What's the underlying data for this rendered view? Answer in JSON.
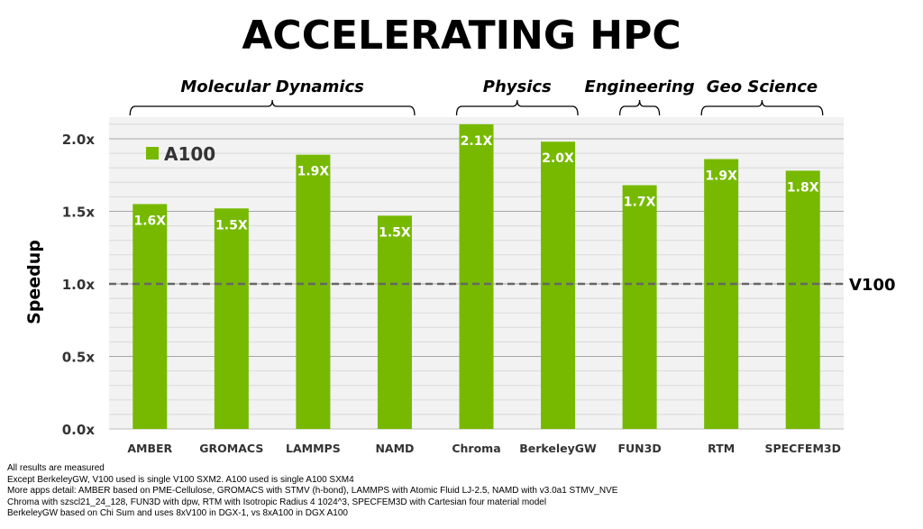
{
  "title": "ACCELERATING HPC",
  "chart_data": {
    "type": "bar",
    "title": "ACCELERATING HPC",
    "ylabel": "Speedup",
    "xlabel": "",
    "ylim": [
      0,
      2.2
    ],
    "yticks": [
      "0.0x",
      "0.5x",
      "1.0x",
      "1.5x",
      "2.0x"
    ],
    "ytick_values": [
      0,
      0.5,
      1.0,
      1.5,
      2.0
    ],
    "grid": true,
    "legend_position": "top-left",
    "categories": [
      "AMBER",
      "GROMACS",
      "LAMMPS",
      "NAMD",
      "Chroma",
      "BerkeleyGW",
      "FUN3D",
      "RTM",
      "SPECFEM3D"
    ],
    "series": [
      {
        "name": "A100",
        "color": "#76b900",
        "values": [
          1.55,
          1.52,
          1.89,
          1.47,
          2.1,
          1.98,
          1.68,
          1.86,
          1.78
        ],
        "labels": [
          "1.6X",
          "1.5X",
          "1.9X",
          "1.5X",
          "2.1X",
          "2.0X",
          "1.7X",
          "1.9X",
          "1.8X"
        ]
      }
    ],
    "reference_line": {
      "label": "V100",
      "value": 1.0
    },
    "groups": [
      {
        "label": "Molecular Dynamics",
        "categories": [
          "AMBER",
          "GROMACS",
          "LAMMPS",
          "NAMD"
        ]
      },
      {
        "label": "Physics",
        "categories": [
          "Chroma",
          "BerkeleyGW"
        ]
      },
      {
        "label": "Engineering",
        "categories": [
          "FUN3D"
        ]
      },
      {
        "label": "Geo Science",
        "categories": [
          "RTM",
          "SPECFEM3D"
        ]
      }
    ]
  },
  "footnotes": [
    "All results are measured",
    "Except BerkeleyGW, V100 used is single V100 SXM2. A100 used is single A100 SXM4",
    "More apps detail: AMBER based on PME-Cellulose,  GROMACS with STMV (h-bond), LAMMPS with Atomic Fluid LJ-2.5, NAMD with v3.0a1 STMV_NVE",
    "Chroma with szscl21_24_128, FUN3D with dpw, RTM with Isotropic Radius 4 1024^3, SPECFEM3D with Cartesian four material model",
    "BerkeleyGW based on Chi Sum and uses 8xV100 in DGX-1, vs 8xA100 in DGX A100"
  ]
}
